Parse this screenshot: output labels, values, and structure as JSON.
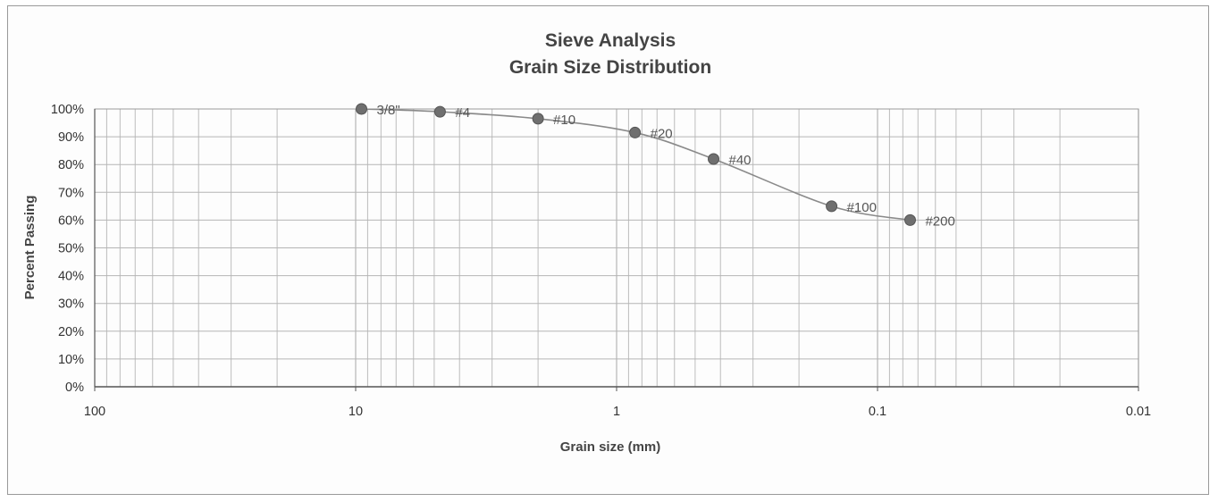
{
  "chart_data": {
    "type": "scatter",
    "title": "Sieve Analysis",
    "subtitle": "Grain Size Distribution",
    "xlabel": "Grain size (mm)",
    "ylabel": "Percent Passing",
    "x_scale": "log",
    "x_reversed": true,
    "xlim": [
      100,
      0.01
    ],
    "ylim": [
      0,
      100
    ],
    "x_ticks": [
      "100",
      "10",
      "1",
      "0.1",
      "0.01"
    ],
    "y_ticks": [
      "0%",
      "10%",
      "20%",
      "30%",
      "40%",
      "50%",
      "60%",
      "70%",
      "80%",
      "90%",
      "100%"
    ],
    "grid": true,
    "legend": "none",
    "series": [
      {
        "points": [
          {
            "label": "3/8\"",
            "x": 9.5,
            "y": 100
          },
          {
            "label": "#4",
            "x": 4.75,
            "y": 99
          },
          {
            "label": "#10",
            "x": 2.0,
            "y": 96.5
          },
          {
            "label": "#20",
            "x": 0.85,
            "y": 91.5
          },
          {
            "label": "#40",
            "x": 0.425,
            "y": 82
          },
          {
            "label": "#100",
            "x": 0.15,
            "y": 65
          },
          {
            "label": "#200",
            "x": 0.075,
            "y": 60
          }
        ]
      }
    ],
    "colors": {
      "marker": "#6f6f6f",
      "line": "#8a8a8a",
      "grid": "#b5b5b5",
      "axis": "#555555"
    }
  }
}
